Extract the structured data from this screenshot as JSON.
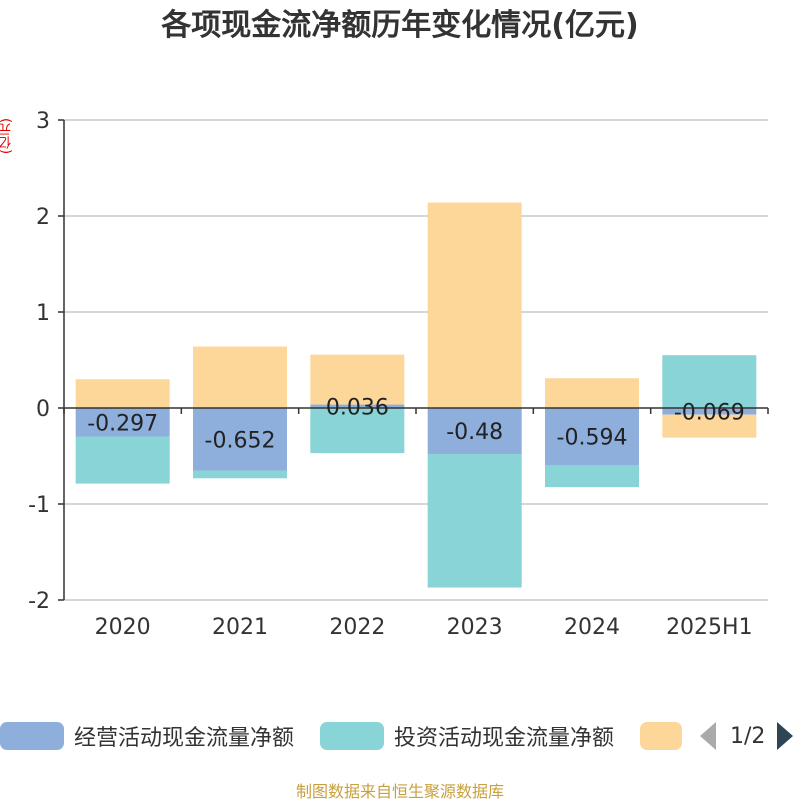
{
  "title": "各项现金流净额历年变化情况(亿元)",
  "ylabel": "(亿元)",
  "source": "制图数据来自恒生聚源数据库",
  "legend": {
    "items": [
      {
        "label": "经营活动现金流量净额",
        "color": "#8eaedb"
      },
      {
        "label": "投资活动现金流量净额",
        "color": "#88d4d6"
      },
      {
        "label": "",
        "color": "#fdd79a"
      }
    ],
    "page": "1/2"
  },
  "chart_data": {
    "type": "bar",
    "stacked": true,
    "categories": [
      "2020",
      "2021",
      "2022",
      "2023",
      "2024",
      "2025H1"
    ],
    "series": [
      {
        "name": "经营活动现金流量净额",
        "color": "#8eaedb",
        "values": [
          -0.297,
          -0.652,
          0.036,
          -0.48,
          -0.594,
          -0.069
        ],
        "labels": [
          "-0.297",
          "-0.652",
          "0.036",
          "-0.48",
          "-0.594",
          "-0.069"
        ]
      },
      {
        "name": "投资活动现金流量净额",
        "color": "#88d4d6",
        "values": [
          -0.49,
          -0.08,
          -0.47,
          -1.39,
          -0.23,
          0.55
        ]
      },
      {
        "name": "",
        "color": "#fdd79a",
        "values": [
          0.3,
          0.64,
          0.52,
          2.14,
          0.31,
          -0.24
        ]
      }
    ],
    "ylim": [
      -2,
      3
    ],
    "yticks": [
      -2,
      -1,
      0,
      1,
      2,
      3
    ],
    "grid": true
  }
}
